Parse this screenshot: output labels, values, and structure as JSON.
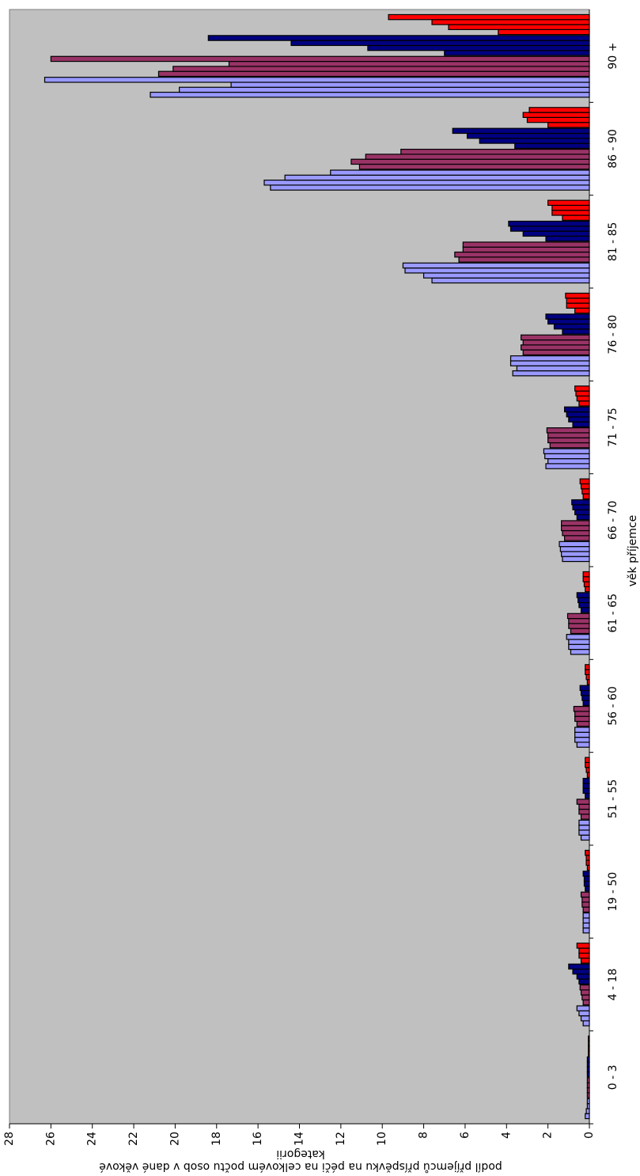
{
  "chart_data": {
    "type": "bar",
    "x_label": "věk příjemce",
    "y_label": [
      "podíl příjemců příspěvku na péči na celkovém počtu osob v dané věkové",
      "kategorii"
    ],
    "categories": [
      "0 - 3",
      "4 - 18",
      "19 - 50",
      "51 - 55",
      "56 - 60",
      "61 - 65",
      "66 - 70",
      "71 - 75",
      "76 - 80",
      "81 - 85",
      "86 - 90",
      "90 +"
    ],
    "ylim": [
      0,
      28
    ],
    "yticks": [
      0,
      2,
      4,
      6,
      8,
      10,
      12,
      14,
      16,
      18,
      20,
      22,
      24,
      26,
      28
    ],
    "grid": false,
    "series": [
      {
        "color": "#9999ff",
        "values": [
          0.2,
          0.3,
          0.3,
          0.4,
          0.6,
          0.9,
          1.3,
          2.1,
          3.7,
          7.6,
          15.4,
          21.2
        ]
      },
      {
        "color": "#9999ff",
        "values": [
          0.15,
          0.4,
          0.3,
          0.5,
          0.7,
          1.0,
          1.35,
          2.0,
          3.5,
          8.0,
          15.7,
          19.8
        ]
      },
      {
        "color": "#9999ff",
        "values": [
          0.1,
          0.5,
          0.3,
          0.5,
          0.7,
          1.0,
          1.4,
          2.15,
          3.8,
          8.9,
          14.7,
          17.3
        ]
      },
      {
        "color": "#9999ff",
        "values": [
          0.1,
          0.6,
          0.3,
          0.5,
          0.7,
          1.1,
          1.45,
          2.2,
          3.8,
          9.0,
          12.5,
          26.3
        ]
      },
      {
        "color": "#993366",
        "values": [
          0.1,
          0.3,
          0.3,
          0.4,
          0.6,
          0.9,
          1.2,
          1.9,
          3.2,
          6.3,
          11.1,
          20.8
        ]
      },
      {
        "color": "#993366",
        "values": [
          0.1,
          0.35,
          0.35,
          0.5,
          0.7,
          1.0,
          1.3,
          2.0,
          3.3,
          6.5,
          11.5,
          20.1
        ]
      },
      {
        "color": "#993366",
        "values": [
          0.1,
          0.4,
          0.35,
          0.5,
          0.7,
          1.0,
          1.35,
          2.0,
          3.2,
          6.1,
          10.8,
          17.4
        ]
      },
      {
        "color": "#993366",
        "values": [
          0.1,
          0.45,
          0.4,
          0.6,
          0.75,
          1.05,
          1.35,
          2.05,
          3.3,
          6.1,
          9.1,
          26.0
        ]
      },
      {
        "color": "#000080",
        "values": [
          0.1,
          0.5,
          0.2,
          0.2,
          0.3,
          0.4,
          0.6,
          0.8,
          1.3,
          2.1,
          3.6,
          7.0
        ]
      },
      {
        "color": "#000080",
        "values": [
          0.1,
          0.6,
          0.25,
          0.3,
          0.35,
          0.5,
          0.7,
          1.0,
          1.7,
          3.2,
          5.3,
          10.7
        ]
      },
      {
        "color": "#000080",
        "values": [
          0.1,
          0.8,
          0.25,
          0.3,
          0.4,
          0.55,
          0.8,
          1.1,
          2.0,
          3.8,
          5.9,
          14.4
        ]
      },
      {
        "color": "#000080",
        "values": [
          0.1,
          1.0,
          0.3,
          0.3,
          0.45,
          0.6,
          0.85,
          1.2,
          2.1,
          3.9,
          6.6,
          18.4
        ]
      },
      {
        "color": "#ff0000",
        "values": [
          0.05,
          0.4,
          0.1,
          0.1,
          0.1,
          0.2,
          0.3,
          0.5,
          0.7,
          1.3,
          2.0,
          4.4
        ]
      },
      {
        "color": "#ff0000",
        "values": [
          0.05,
          0.5,
          0.15,
          0.15,
          0.15,
          0.25,
          0.35,
          0.6,
          1.1,
          1.8,
          3.0,
          6.8
        ]
      },
      {
        "color": "#ff0000",
        "values": [
          0.05,
          0.5,
          0.15,
          0.2,
          0.2,
          0.3,
          0.4,
          0.65,
          1.1,
          1.8,
          3.2,
          7.6
        ]
      },
      {
        "color": "#ff0000",
        "values": [
          0.05,
          0.6,
          0.2,
          0.2,
          0.2,
          0.3,
          0.45,
          0.7,
          1.15,
          2.0,
          2.9,
          9.7
        ]
      }
    ]
  }
}
